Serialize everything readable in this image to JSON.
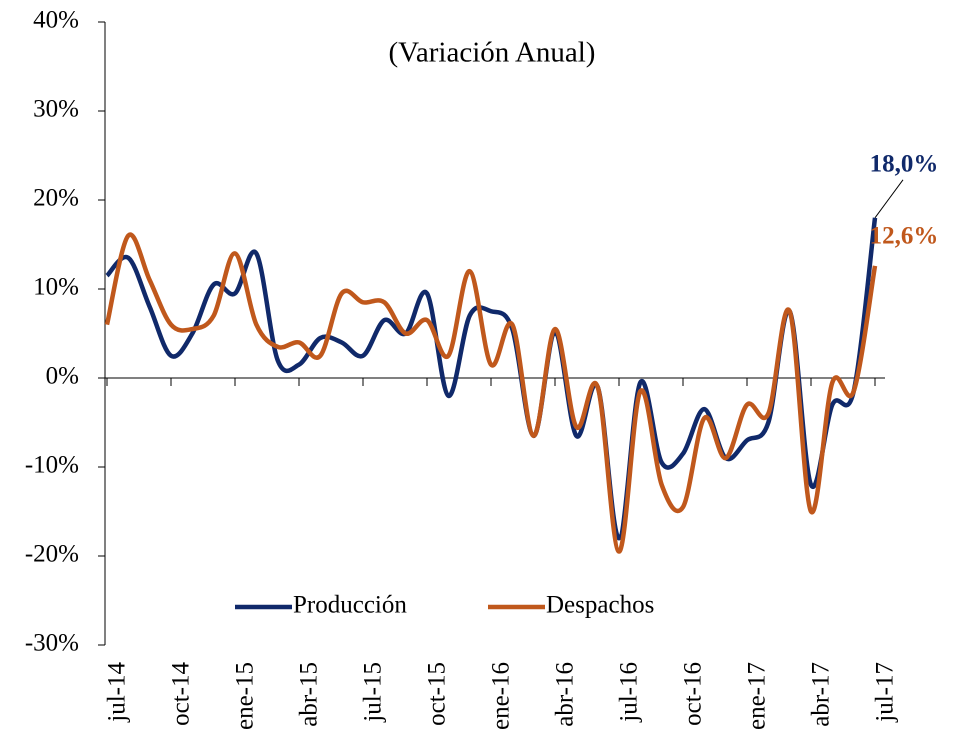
{
  "chart_data": {
    "type": "line",
    "subtitle": "(Variación Anual)",
    "categories": [
      "jul-14",
      null,
      null,
      "oct-14",
      null,
      null,
      "ene-15",
      null,
      null,
      "abr-15",
      null,
      null,
      "jul-15",
      null,
      null,
      "oct-15",
      null,
      null,
      "ene-16",
      null,
      null,
      "abr-16",
      null,
      null,
      "jul-16",
      null,
      null,
      "oct-16",
      null,
      null,
      "ene-17",
      null,
      null,
      "abr-17",
      null,
      null,
      "jul-17"
    ],
    "series": [
      {
        "name": "Producción",
        "color": "#10296a",
        "values": [
          11.5,
          13.5,
          8,
          2.5,
          5,
          10.5,
          9.5,
          14,
          2,
          1.5,
          4.5,
          4,
          2.5,
          6.5,
          5,
          9.5,
          -2,
          7,
          7.5,
          5.5,
          -6.5,
          5,
          -6.5,
          -1,
          -18,
          -0.5,
          -9.5,
          -8.5,
          -3.5,
          -9,
          -7,
          -5,
          7.5,
          -12,
          -3,
          -1.5,
          18
        ],
        "value_labels": [
          null,
          null,
          null,
          null,
          null,
          null,
          null,
          null,
          null,
          null,
          null,
          null,
          null,
          null,
          null,
          null,
          null,
          null,
          null,
          null,
          null,
          null,
          null,
          null,
          null,
          null,
          null,
          null,
          null,
          null,
          null,
          null,
          null,
          null,
          null,
          null,
          "18,0%"
        ]
      },
      {
        "name": "Despachos",
        "color": "#c0581c",
        "values": [
          6,
          16,
          11,
          6,
          5.5,
          7,
          14,
          6,
          3.5,
          4,
          2.5,
          9.5,
          8.5,
          8.5,
          5,
          6.5,
          2.5,
          12,
          1.5,
          6,
          -6.5,
          5.5,
          -5.5,
          -1,
          -19.5,
          -1.5,
          -12,
          -14.5,
          -4.5,
          -9,
          -3,
          -4,
          7.5,
          -15,
          -0.5,
          -1.5,
          12.6
        ],
        "value_labels": [
          null,
          null,
          null,
          null,
          null,
          null,
          null,
          null,
          null,
          null,
          null,
          null,
          null,
          null,
          null,
          null,
          null,
          null,
          null,
          null,
          null,
          null,
          null,
          null,
          null,
          null,
          null,
          null,
          null,
          null,
          null,
          null,
          null,
          null,
          null,
          null,
          "12,6%"
        ]
      }
    ],
    "ylim": [
      -30,
      40
    ],
    "yticks": [
      {
        "value": -30,
        "label": "-30%"
      },
      {
        "value": -20,
        "label": "-20%"
      },
      {
        "value": -10,
        "label": "-10%"
      },
      {
        "value": 0,
        "label": "0%"
      },
      {
        "value": 10,
        "label": "10%"
      },
      {
        "value": 20,
        "label": "20%"
      },
      {
        "value": 30,
        "label": "30%"
      },
      {
        "value": 40,
        "label": "40%"
      }
    ],
    "legend": "bottom"
  }
}
